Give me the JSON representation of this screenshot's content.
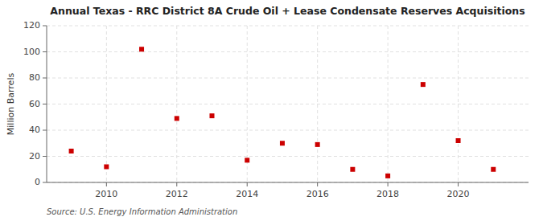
{
  "chart_data": {
    "type": "scatter",
    "title": "Annual Texas - RRC District 8A Crude Oil + Lease Condensate Reserves Acquisitions",
    "ylabel": "Million Barrels",
    "annotations": [
      "Source: U.S. Energy Information Administration"
    ],
    "x": [
      2009,
      2010,
      2011,
      2012,
      2013,
      2014,
      2015,
      2016,
      2017,
      2018,
      2019,
      2020,
      2021
    ],
    "values": [
      24,
      12,
      102,
      49,
      51,
      17,
      30,
      29,
      10,
      5,
      75,
      32,
      10
    ],
    "color": "#CC0000",
    "marker": "square",
    "xlim": [
      2008.3,
      2022.0
    ],
    "xticks": [
      2010,
      2012,
      2014,
      2016,
      2018,
      2020
    ],
    "ylim": [
      0,
      120
    ],
    "yticks": [
      0,
      20,
      40,
      60,
      80,
      100,
      120
    ],
    "grid": true
  }
}
